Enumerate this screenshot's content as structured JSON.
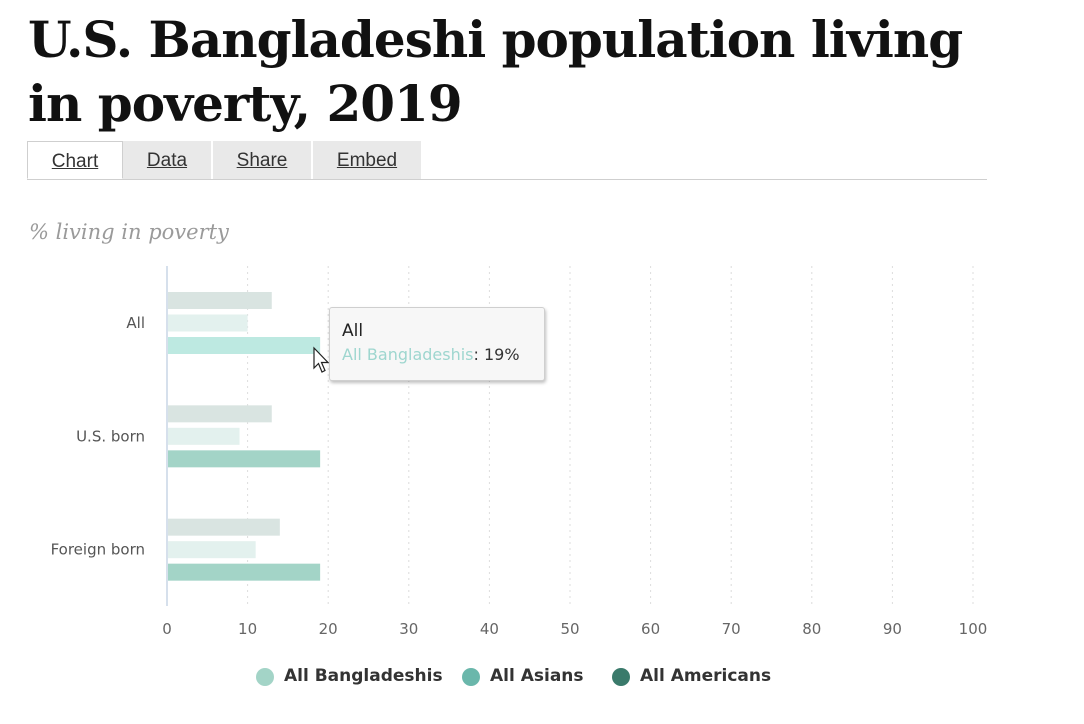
{
  "title": "U.S. Bangladeshi population living in poverty, 2019",
  "tabs": [
    {
      "label": "Chart",
      "active": true
    },
    {
      "label": "Data",
      "active": false
    },
    {
      "label": "Share",
      "active": false
    },
    {
      "label": "Embed",
      "active": false
    }
  ],
  "subtitle": "% living in poverty",
  "chart_data": {
    "type": "bar",
    "orientation": "horizontal",
    "categories": [
      "All",
      "U.S. born",
      "Foreign born"
    ],
    "series": [
      {
        "name": "All Americans",
        "values": [
          13,
          13,
          14
        ],
        "color": "#d9e4e1"
      },
      {
        "name": "All Asians",
        "values": [
          10,
          9,
          11
        ],
        "color": "#e3f1ee"
      },
      {
        "name": "All Bangladeshis",
        "values": [
          19,
          19,
          19
        ],
        "color": "#a3d4c7"
      }
    ],
    "highlight_color": "#bde9e1",
    "xlim": [
      0,
      100
    ],
    "xticks": [
      "0",
      "10",
      "20",
      "30",
      "40",
      "50",
      "60",
      "70",
      "80",
      "90",
      "100"
    ],
    "grid": "vertical dotted",
    "legend_position": "bottom"
  },
  "tooltip": {
    "title": "All",
    "series": "All Bangladeshis",
    "value": ": 19%"
  },
  "legend": [
    {
      "label": "All Bangladeshis",
      "color": "#a3d4c7"
    },
    {
      "label": "All Asians",
      "color": "#6ab7ab"
    },
    {
      "label": "All Americans",
      "color": "#3a7a6b"
    }
  ]
}
